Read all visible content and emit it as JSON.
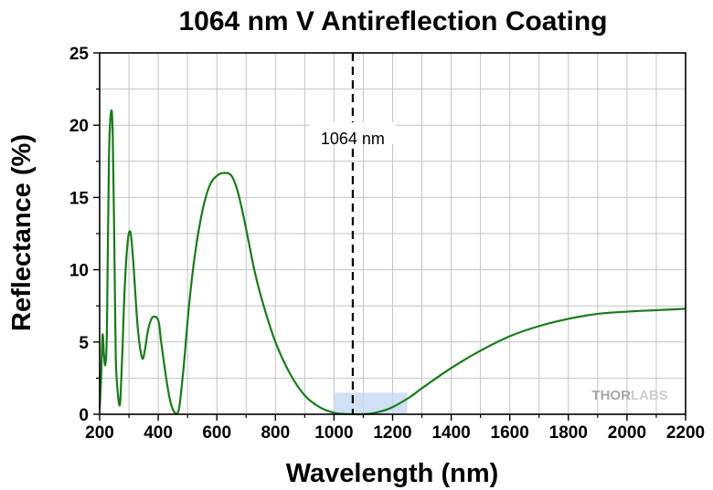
{
  "chart_data": {
    "type": "line",
    "title": "1064 nm V Antireflection Coating",
    "xlabel": "Wavelength (nm)",
    "ylabel": "Reflectance (%)",
    "xlim": [
      200,
      2200
    ],
    "ylim": [
      0,
      25
    ],
    "x_ticks": [
      "200",
      "400",
      "600",
      "800",
      "1000",
      "1200",
      "1400",
      "1600",
      "1800",
      "2000",
      "2200"
    ],
    "y_ticks": [
      "0",
      "5",
      "10",
      "15",
      "20",
      "25"
    ],
    "grid": true,
    "legend": "none",
    "series": [
      {
        "color": "#1a7a1a",
        "x": [
          200,
          205,
          210,
          215,
          220,
          225,
          232,
          240,
          245,
          250,
          255,
          262,
          268,
          272,
          278,
          285,
          295,
          305,
          315,
          330,
          345,
          355,
          365,
          380,
          400,
          410,
          425,
          440,
          455,
          470,
          483,
          490,
          505,
          525,
          550,
          575,
          600,
          625,
          650,
          670,
          690,
          710,
          730,
          760,
          800,
          850,
          900,
          950,
          1000,
          1040,
          1080,
          1120,
          1160,
          1200,
          1260,
          1300,
          1400,
          1500,
          1600,
          1700,
          1800,
          1900,
          2000,
          2100,
          2200
        ],
        "y": [
          0.3,
          2.5,
          5.5,
          4.0,
          3.5,
          6.0,
          18.0,
          21.0,
          19.0,
          12.0,
          4.0,
          1.5,
          0.6,
          1.5,
          4.5,
          8.5,
          11.8,
          12.6,
          10.5,
          6.0,
          3.9,
          4.5,
          5.8,
          6.7,
          6.5,
          5.0,
          2.8,
          1.0,
          0.15,
          0.3,
          2.5,
          4.0,
          7.5,
          11.0,
          14.0,
          15.8,
          16.5,
          16.7,
          16.5,
          15.5,
          13.8,
          11.8,
          9.8,
          7.5,
          5.0,
          2.8,
          1.3,
          0.5,
          0.1,
          0.02,
          0.0,
          0.03,
          0.2,
          0.5,
          1.2,
          1.8,
          3.2,
          4.4,
          5.4,
          6.1,
          6.6,
          6.95,
          7.1,
          7.2,
          7.3
        ]
      }
    ],
    "annotations": [
      {
        "type": "vline",
        "x": 1064,
        "label": "1064 nm",
        "style": "dashed",
        "color": "#000000"
      },
      {
        "type": "shaded-band",
        "x": [
          1000,
          1250
        ],
        "y": [
          0,
          1.5
        ],
        "color": "#c9daf2"
      }
    ]
  },
  "watermark": {
    "label_dark": "THOR",
    "label_light": "LABS"
  }
}
